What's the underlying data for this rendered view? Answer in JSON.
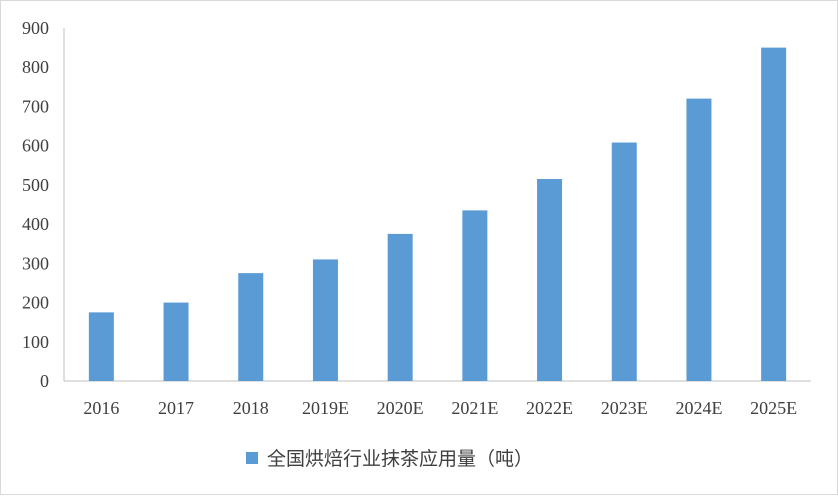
{
  "chart_data": {
    "type": "bar",
    "title": "",
    "xlabel": "",
    "ylabel": "",
    "categories": [
      "2016",
      "2017",
      "2018",
      "2019E",
      "2020E",
      "2021E",
      "2022E",
      "2023E",
      "2024E",
      "2025E"
    ],
    "series": [
      {
        "name": "全国烘焙行业抹茶应用量（吨）",
        "values": [
          175,
          200,
          275,
          310,
          375,
          435,
          515,
          608,
          720,
          850
        ],
        "color": "#5b9bd5"
      }
    ],
    "ylim": [
      0,
      900
    ],
    "yticks": [
      "0",
      "100",
      "200",
      "300",
      "400",
      "500",
      "600",
      "700",
      "800",
      "900"
    ],
    "grid": false,
    "legend_position": "bottom"
  }
}
